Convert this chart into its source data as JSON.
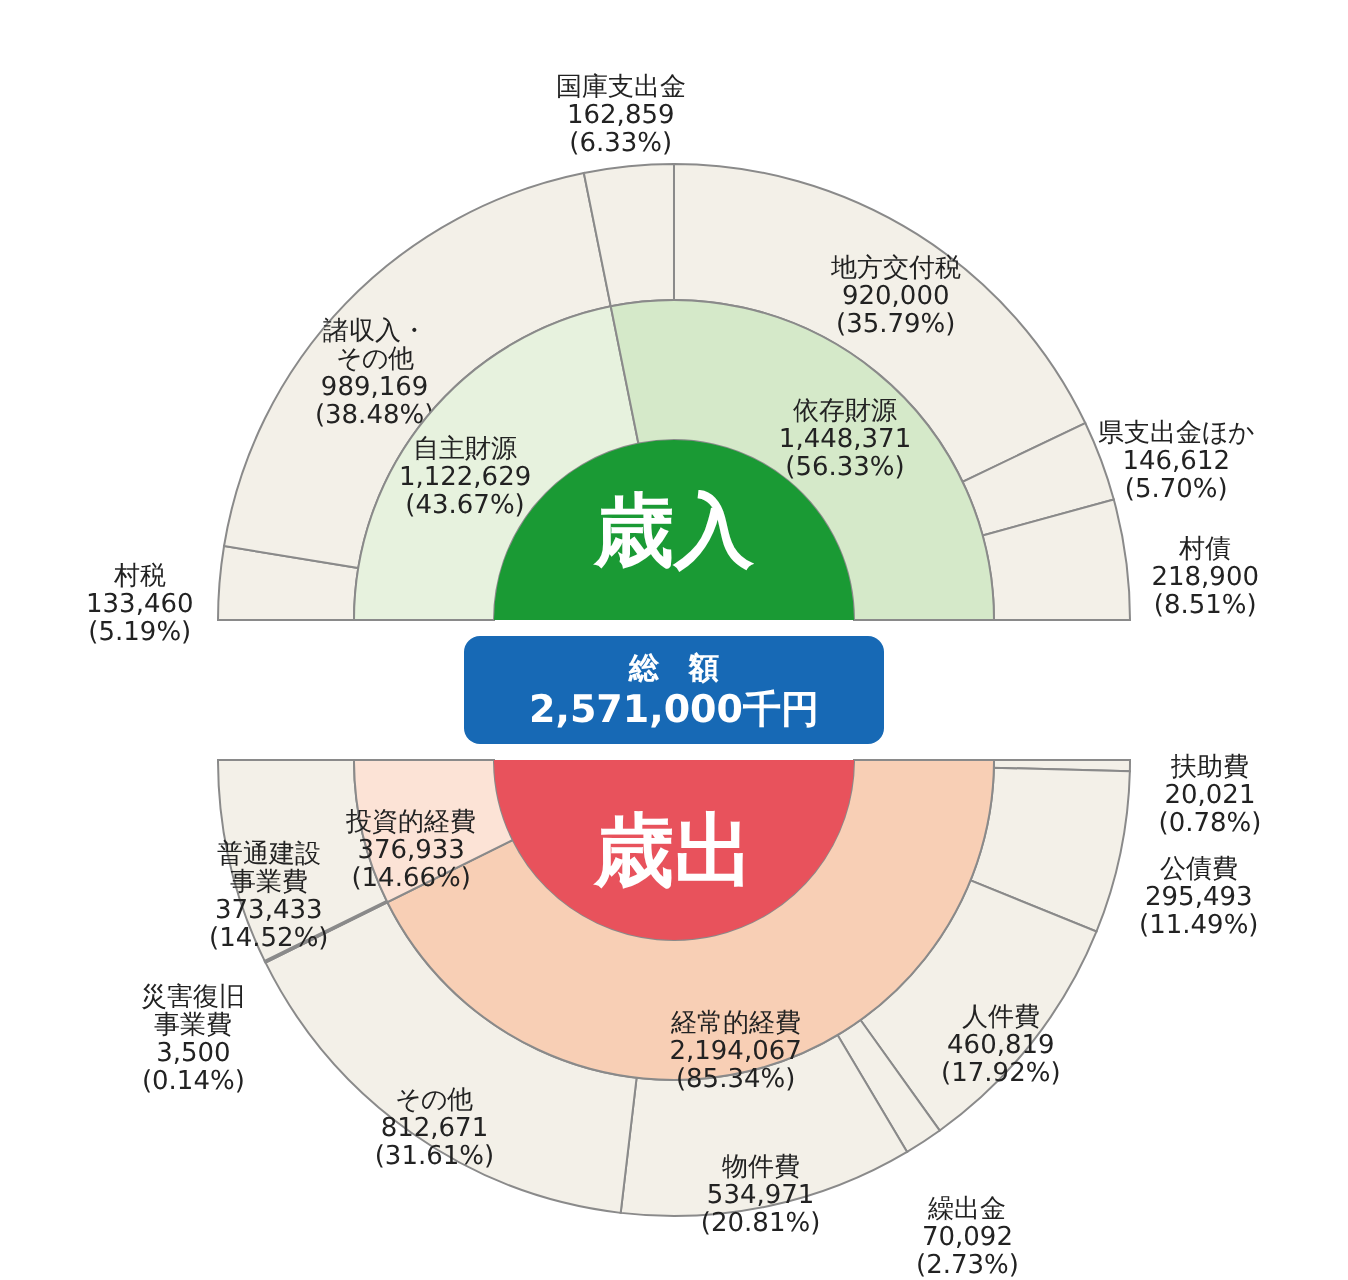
{
  "chart_data": [
    {
      "type": "donut",
      "title": "歳入",
      "categories": [
        "自主財源",
        "依存財源"
      ],
      "values": [
        1122629,
        1448371
      ],
      "colors": [
        "#e7f2de",
        "#d5e9c9"
      ],
      "value_labels": [
        "1,122,629 (43.67%)",
        "1,448,371 (56.33%)"
      ],
      "annotations": [
        "総　額",
        "2,571,000千円"
      ]
    },
    {
      "type": "donut",
      "categories": [
        "村税",
        "諸収入・その他",
        "国庫支出金",
        "地方交付税",
        "県支出金ほか",
        "村債"
      ],
      "values": [
        133460,
        989169,
        162859,
        920000,
        146612,
        218900
      ],
      "colors": [
        "#f3f0e8",
        "#f3f0e8",
        "#f3f0e8",
        "#f3f0e8",
        "#f3f0e8",
        "#f3f0e8"
      ],
      "value_labels": [
        "133,460 (5.19%)",
        "989,169 (38.48%)",
        "162,859 (6.33%)",
        "920,000 (35.79%)",
        "146,612 (5.70%)",
        "218,900 (8.51%)"
      ]
    },
    {
      "type": "donut",
      "title": "歳出",
      "categories": [
        "経常的経費",
        "投資的経費"
      ],
      "values": [
        2194067,
        376933
      ],
      "colors": [
        "#f8cfb5",
        "#fce3d6"
      ],
      "value_labels": [
        "2,194,067 (85.34%)",
        "376,933 (14.66%)"
      ]
    },
    {
      "type": "donut",
      "categories": [
        "扶助費",
        "公債費",
        "人件費",
        "繰出金",
        "物件費",
        "その他",
        "災害復旧事業費",
        "普通建設事業費"
      ],
      "values": [
        20021,
        295493,
        460819,
        70092,
        534971,
        812671,
        3500,
        373433
      ],
      "colors": [
        "#f3f0e8",
        "#f3f0e8",
        "#f3f0e8",
        "#f3f0e8",
        "#f3f0e8",
        "#f3f0e8",
        "#f3f0e8",
        "#f3f0e8"
      ],
      "value_labels": [
        "20,021 (0.78%)",
        "295,493 (11.49%)",
        "460,819 (17.92%)",
        "70,092 (2.73%)",
        "534,971 (20.81%)",
        "812,671 (31.61%)",
        "3,500 (0.14%)",
        "373,433 (14.52%)"
      ]
    }
  ]
}
